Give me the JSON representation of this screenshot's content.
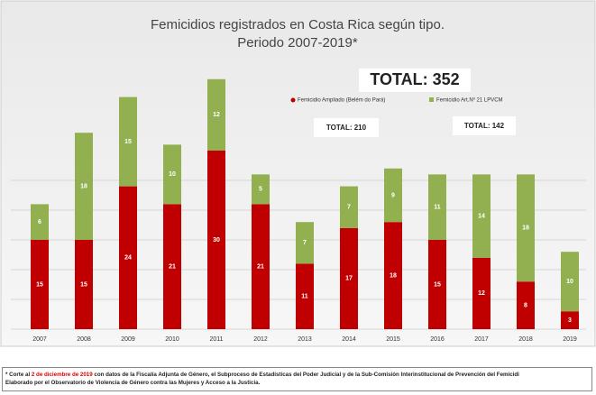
{
  "chart_data": {
    "type": "stacked_bar",
    "title": [
      "Femicidios registrados en Costa Rica según tipo.",
      "Periodo 2007-2019*"
    ],
    "categories": [
      "2007",
      "2008",
      "2009",
      "2010",
      "2011",
      "2012",
      "2013",
      "2014",
      "2015",
      "2016",
      "2017",
      "2018",
      "2019"
    ],
    "series": [
      {
        "name": "Femicidio Ampliado (Belém do Pará)",
        "color": "#c00000",
        "values": [
          15,
          15,
          24,
          21,
          30,
          21,
          11,
          17,
          18,
          15,
          12,
          8,
          3
        ]
      },
      {
        "name": "Femicidio Art.Nº 21 LPVCM",
        "color": "#92b04f",
        "values": [
          6,
          18,
          15,
          10,
          12,
          5,
          7,
          7,
          9,
          11,
          14,
          18,
          10
        ]
      }
    ],
    "ylim": [
      0,
      50
    ],
    "yticks": [
      0,
      5,
      10,
      15,
      20,
      25
    ],
    "grid": true,
    "annotations": {
      "total": "TOTAL: 352",
      "total_red": "TOTAL: 210",
      "total_green": "TOTAL: 142"
    }
  },
  "footnote": {
    "prefix": "* Corte al ",
    "date": "2 de diciembre de 2019",
    "rest": " con datos de la Fiscalía Adjunta de Género, el Subproceso de Estadísticas del Poder Judicial y de la Sub-Comisión Interinstitucional de Prevención del Femicidi",
    "line2": "Elaborado por el Observatorio de Violencia de Género contra las Mujeres y Acceso a la Justicia."
  }
}
